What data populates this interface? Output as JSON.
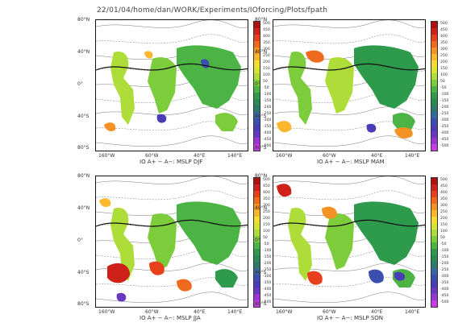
{
  "header": "22/01/04/home/dan/WORK/Experiments/IOforcing/Plots/fpath",
  "lat_labels": [
    "80°N",
    "40°N",
    "0°",
    "40°S",
    "80°S"
  ],
  "lon_labels": [
    "160°W",
    "60°W",
    "40°E",
    "140°E"
  ],
  "colorbar": {
    "levels": [
      "500",
      "450",
      "400",
      "350",
      "300",
      "250",
      "200",
      "150",
      "100",
      "50",
      "-50",
      "-100",
      "-150",
      "-200",
      "-250",
      "-300",
      "-350",
      "-400",
      "-450",
      "-500"
    ],
    "colors": [
      "#b01010",
      "#d0201a",
      "#e8401c",
      "#f06a1e",
      "#f59224",
      "#fbb82e",
      "#f4dc30",
      "#d8e432",
      "#aedc38",
      "#7ccc3c",
      "#4cb444",
      "#2e9a4c",
      "#2a8a54",
      "#2e7a6a",
      "#3568a0",
      "#3a4fb0",
      "#4a3cb4",
      "#6a38c0",
      "#9a34d2",
      "#c83ce4"
    ]
  },
  "panels": [
    {
      "title": "IO A+ − A−: MSLP DJF"
    },
    {
      "title": "IO A+ − A−: MSLP MAM"
    },
    {
      "title": "IO A+ − A−: MSLP JJA"
    },
    {
      "title": "IO A+ − A−: MSLP SON"
    }
  ]
}
